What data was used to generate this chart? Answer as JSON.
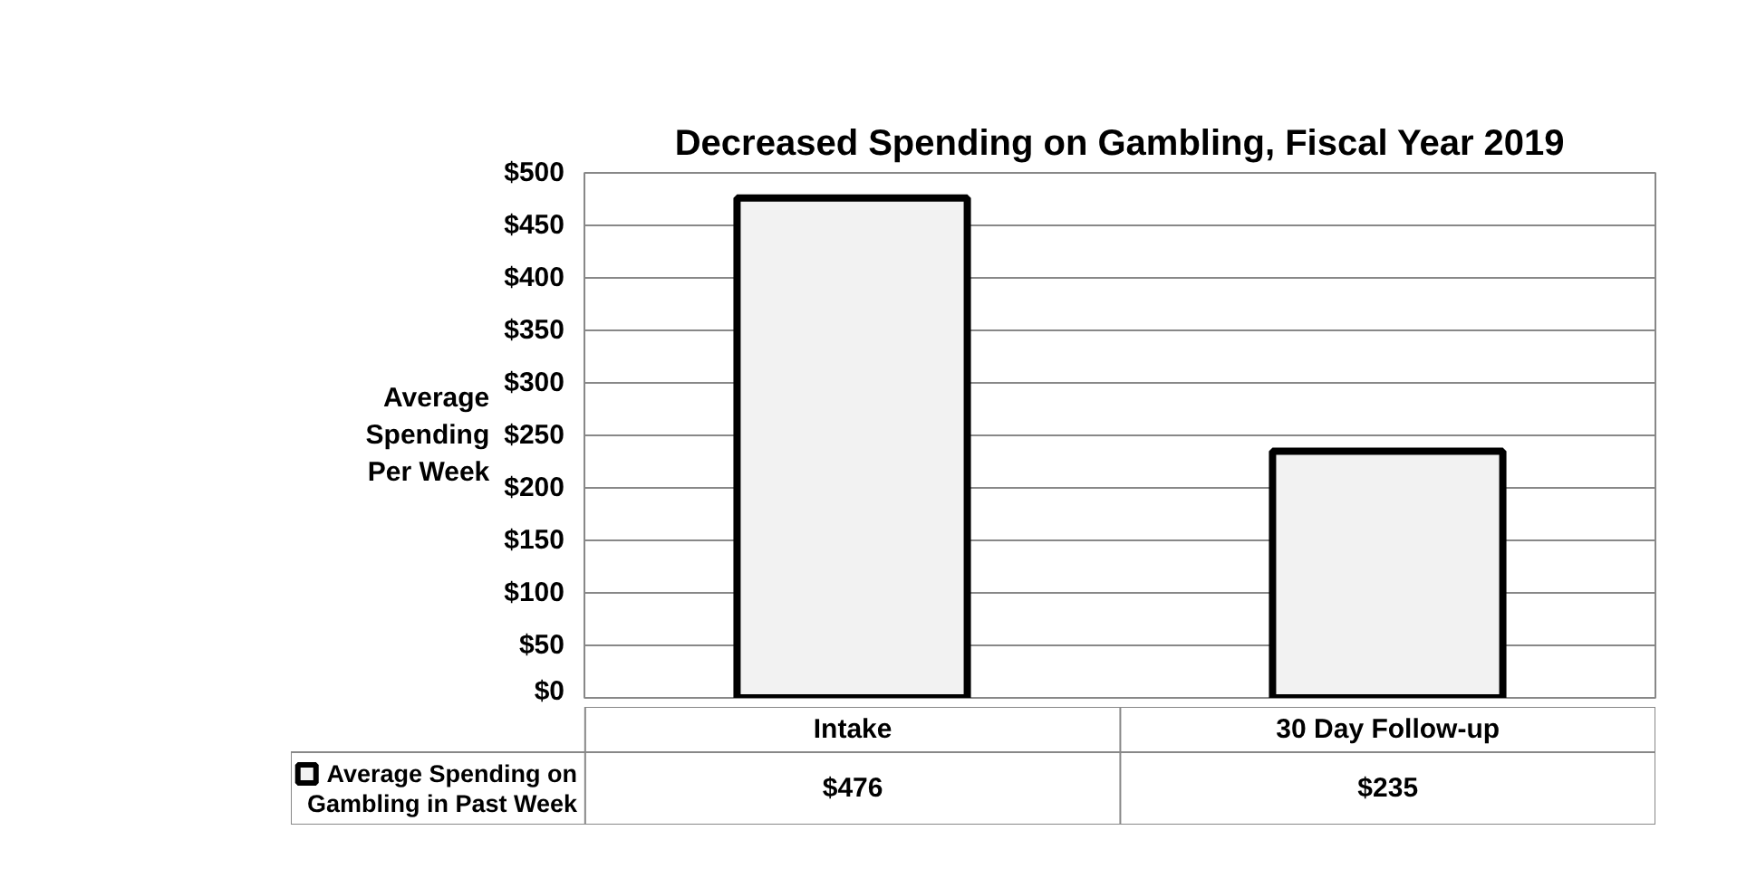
{
  "chart_data": {
    "type": "bar",
    "title": "Decreased Spending on Gambling, Fiscal Year 2019",
    "ylabel": "Average Spending Per Week",
    "categories": [
      "Intake",
      "30 Day Follow-up"
    ],
    "series": [
      {
        "name": "Average Spending on Gambling in Past Week",
        "color": "#f2f2f2",
        "values": [
          476,
          235
        ],
        "value_labels": [
          "$476",
          "$235"
        ]
      }
    ],
    "ylim": [
      0,
      500
    ],
    "yticks": [
      {
        "value": 0,
        "label": "$0"
      },
      {
        "value": 50,
        "label": "$50"
      },
      {
        "value": 100,
        "label": "$100"
      },
      {
        "value": 150,
        "label": "$150"
      },
      {
        "value": 200,
        "label": "$200"
      },
      {
        "value": 250,
        "label": "$250"
      },
      {
        "value": 300,
        "label": "$300"
      },
      {
        "value": 350,
        "label": "$350"
      },
      {
        "value": 400,
        "label": "$400"
      },
      {
        "value": 450,
        "label": "$450"
      },
      {
        "value": 500,
        "label": "$500"
      }
    ],
    "grid": "y",
    "legend": "bottom",
    "data_labels": true
  }
}
